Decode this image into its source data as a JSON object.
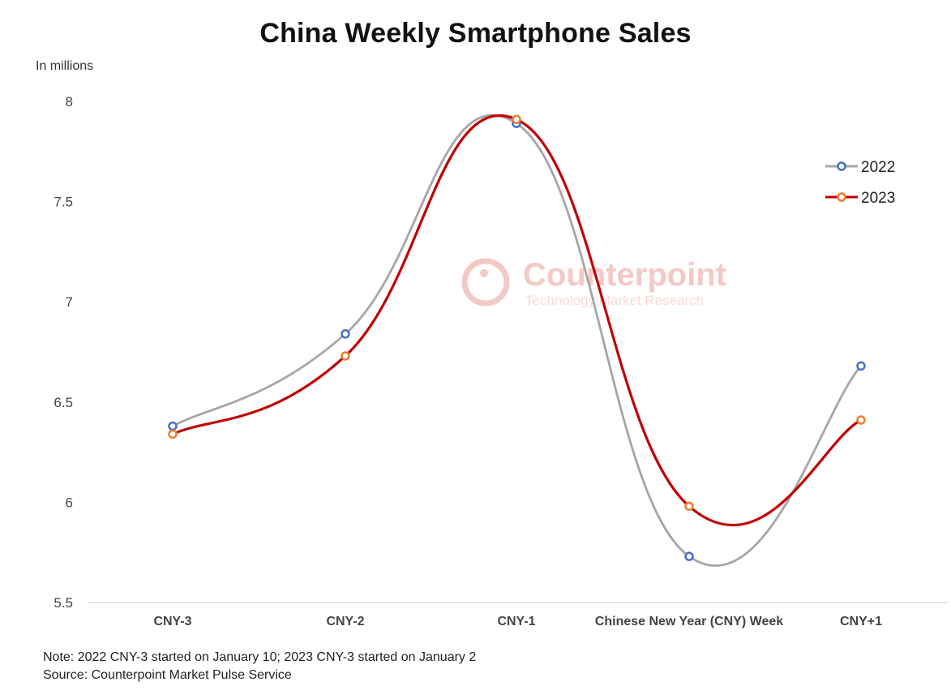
{
  "chart_data": {
    "type": "line",
    "title": "China Weekly Smartphone Sales",
    "ylabel": "In millions",
    "xlabel": "",
    "categories": [
      "CNY-3",
      "CNY-2",
      "CNY-1",
      "Chinese New Year (CNY) Week",
      "CNY+1"
    ],
    "series": [
      {
        "name": "2022",
        "values": [
          6.38,
          6.84,
          7.89,
          5.73,
          6.68
        ],
        "color": "#a6a6a6",
        "marker_color": "#4472c4"
      },
      {
        "name": "2023",
        "values": [
          6.34,
          6.73,
          7.91,
          5.98,
          6.41
        ],
        "color": "#c00000",
        "marker_color": "#ed7d31"
      }
    ],
    "ylim": [
      5.5,
      8
    ],
    "yticks": [
      "5.5",
      "6",
      "6.5",
      "7",
      "7.5",
      "8"
    ],
    "grid": false,
    "smooth": true,
    "legend_position": "top-right"
  },
  "watermark": {
    "name": "Counterpoint",
    "tagline": "Technology Market Research"
  },
  "notes": {
    "note": "Note: 2022 CNY-3 started on January 10; 2023 CNY-3 started on January 2",
    "source": "Source: Counterpoint Market Pulse Service"
  }
}
